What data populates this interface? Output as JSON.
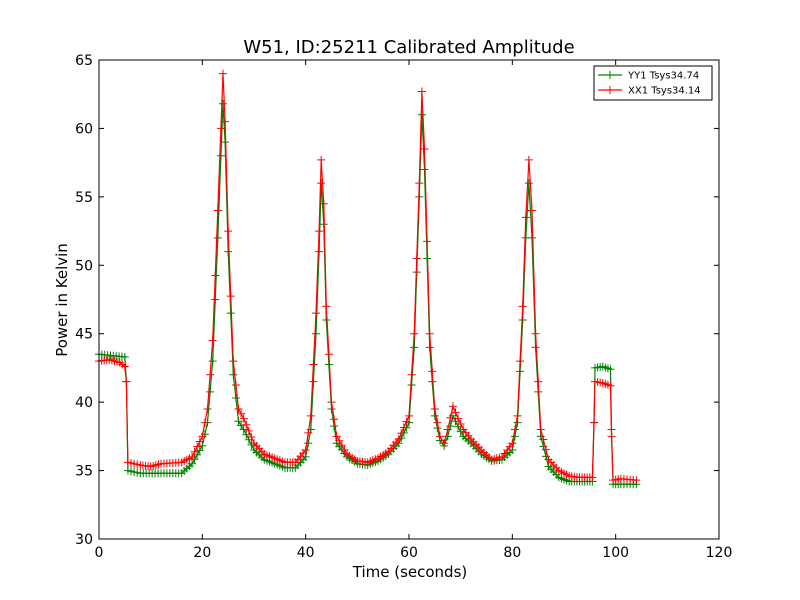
{
  "chart_data": {
    "type": "line",
    "title": "W51, ID:25211 Calibrated Amplitude",
    "xlabel": "Time (seconds)",
    "ylabel": "Power in Kelvin",
    "xlim": [
      0,
      120
    ],
    "ylim": [
      30,
      65
    ],
    "xticks": [
      0,
      20,
      40,
      60,
      80,
      100,
      120
    ],
    "yticks": [
      30,
      35,
      40,
      45,
      50,
      55,
      60,
      65
    ],
    "grid": false,
    "legend_position": "top-right",
    "marker": "plus",
    "series": [
      {
        "name": "YY1 Tsys34.74",
        "color": "#008000",
        "points": [
          [
            0,
            43.5
          ],
          [
            5,
            43.3
          ],
          [
            5.3,
            41.5
          ],
          [
            5.6,
            35
          ],
          [
            8,
            34.8
          ],
          [
            12,
            34.8
          ],
          [
            16,
            34.8
          ],
          [
            18,
            35.5
          ],
          [
            20,
            36.8
          ],
          [
            21,
            38.5
          ],
          [
            22,
            43
          ],
          [
            23,
            52
          ],
          [
            23.6,
            58
          ],
          [
            24,
            61.8
          ],
          [
            24.4,
            59
          ],
          [
            25,
            51
          ],
          [
            26,
            42
          ],
          [
            27,
            38.6
          ],
          [
            28,
            38
          ],
          [
            30,
            36.5
          ],
          [
            32,
            35.8
          ],
          [
            34,
            35.5
          ],
          [
            36,
            35.2
          ],
          [
            38,
            35.2
          ],
          [
            40,
            36
          ],
          [
            41,
            38
          ],
          [
            42,
            45
          ],
          [
            42.6,
            51
          ],
          [
            43,
            56
          ],
          [
            43.5,
            53
          ],
          [
            44,
            46
          ],
          [
            45,
            39.5
          ],
          [
            46,
            37
          ],
          [
            48,
            36
          ],
          [
            50,
            35.5
          ],
          [
            52,
            35.4
          ],
          [
            54,
            35.7
          ],
          [
            56,
            36.2
          ],
          [
            58,
            37
          ],
          [
            60,
            38.5
          ],
          [
            61,
            44
          ],
          [
            62,
            55
          ],
          [
            62.5,
            61
          ],
          [
            63,
            57
          ],
          [
            64,
            44
          ],
          [
            65,
            39
          ],
          [
            66,
            37.2
          ],
          [
            66.8,
            36.8
          ],
          [
            67.5,
            37.5
          ],
          [
            68.5,
            39
          ],
          [
            69.5,
            38.2
          ],
          [
            70.5,
            37.5
          ],
          [
            72,
            37
          ],
          [
            74,
            36.2
          ],
          [
            76,
            35.7
          ],
          [
            78,
            35.8
          ],
          [
            80,
            36.5
          ],
          [
            81,
            38.5
          ],
          [
            82,
            46
          ],
          [
            82.6,
            52
          ],
          [
            83.2,
            56
          ],
          [
            83.8,
            52
          ],
          [
            84.5,
            44
          ],
          [
            85.5,
            37.5
          ],
          [
            87,
            35.3
          ],
          [
            89,
            34.5
          ],
          [
            91,
            34.2
          ],
          [
            93,
            34.2
          ],
          [
            95.5,
            34.2
          ],
          [
            95.8,
            38.5
          ],
          [
            96,
            42.5
          ],
          [
            97.5,
            42.6
          ],
          [
            99,
            42.4
          ],
          [
            99.2,
            38
          ],
          [
            99.5,
            34
          ],
          [
            101,
            34
          ],
          [
            104,
            34
          ]
        ]
      },
      {
        "name": "XX1 Tsys34.14",
        "color": "#ff0000",
        "points": [
          [
            0,
            43
          ],
          [
            2,
            43.1
          ],
          [
            4,
            42.9
          ],
          [
            5,
            42.6
          ],
          [
            5.3,
            41.5
          ],
          [
            5.6,
            35.6
          ],
          [
            8,
            35.4
          ],
          [
            10,
            35.3
          ],
          [
            12,
            35.5
          ],
          [
            16,
            35.6
          ],
          [
            18,
            36
          ],
          [
            20,
            37.5
          ],
          [
            21,
            39.5
          ],
          [
            22,
            44.5
          ],
          [
            23,
            54
          ],
          [
            23.6,
            60
          ],
          [
            24,
            64
          ],
          [
            24.4,
            60.5
          ],
          [
            25,
            52.5
          ],
          [
            26,
            43
          ],
          [
            27,
            39.5
          ],
          [
            28,
            38.8
          ],
          [
            30,
            37
          ],
          [
            32,
            36.2
          ],
          [
            34,
            35.9
          ],
          [
            36,
            35.6
          ],
          [
            38,
            35.6
          ],
          [
            40,
            36.5
          ],
          [
            41,
            39
          ],
          [
            42,
            46.5
          ],
          [
            42.6,
            52.5
          ],
          [
            43,
            57.7
          ],
          [
            43.5,
            54.5
          ],
          [
            44,
            47
          ],
          [
            45,
            40
          ],
          [
            46,
            37.5
          ],
          [
            48,
            36.2
          ],
          [
            50,
            35.7
          ],
          [
            52,
            35.6
          ],
          [
            54,
            35.9
          ],
          [
            56,
            36.4
          ],
          [
            58,
            37.3
          ],
          [
            60,
            39
          ],
          [
            61,
            45
          ],
          [
            62,
            56
          ],
          [
            62.5,
            62.7
          ],
          [
            63,
            58.5
          ],
          [
            64,
            45
          ],
          [
            65,
            39.5
          ],
          [
            66,
            37.5
          ],
          [
            66.8,
            37
          ],
          [
            67.5,
            38
          ],
          [
            68.5,
            39.7
          ],
          [
            69.5,
            38.8
          ],
          [
            70.5,
            38
          ],
          [
            72,
            37.3
          ],
          [
            74,
            36.5
          ],
          [
            76,
            35.8
          ],
          [
            78,
            36
          ],
          [
            80,
            37
          ],
          [
            81,
            39
          ],
          [
            82,
            47
          ],
          [
            82.6,
            53.5
          ],
          [
            83.2,
            57.7
          ],
          [
            83.8,
            54
          ],
          [
            84.5,
            45
          ],
          [
            85.5,
            38
          ],
          [
            87,
            35.8
          ],
          [
            89,
            35
          ],
          [
            91,
            34.6
          ],
          [
            93,
            34.5
          ],
          [
            95.5,
            34.5
          ],
          [
            95.8,
            38.5
          ],
          [
            96,
            41.5
          ],
          [
            97.5,
            41.4
          ],
          [
            99,
            41.2
          ],
          [
            99.2,
            37.5
          ],
          [
            99.5,
            34.3
          ],
          [
            101,
            34.4
          ],
          [
            104,
            34.3
          ]
        ]
      }
    ]
  }
}
